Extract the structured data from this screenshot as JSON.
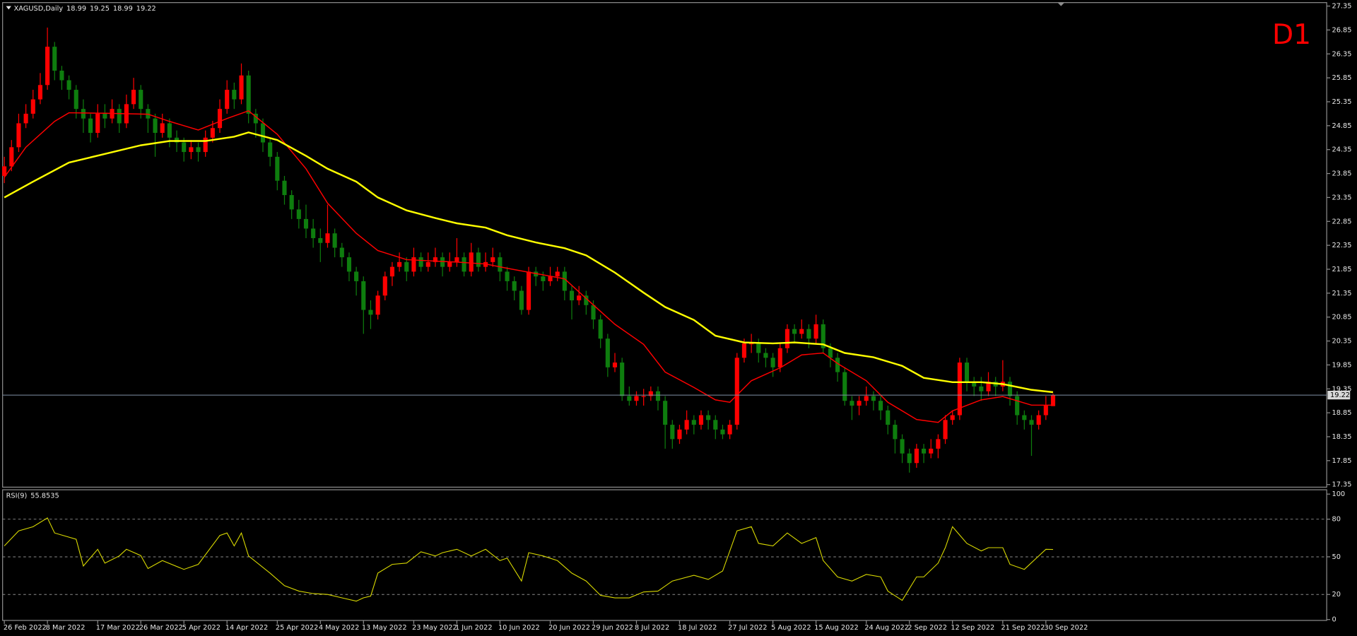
{
  "chart_data": [
    {
      "type": "candlestick",
      "symbol": "XAGUSD,Daily",
      "timeframe": "D1",
      "up_color": "#ff0000",
      "down_color": "#0e7d0e",
      "open": [
        23.8,
        24.0,
        24.4,
        24.9,
        25.1,
        25.4,
        25.7,
        26.5,
        26.0,
        25.8,
        25.6,
        25.2,
        25.0,
        24.7,
        25.1,
        25.0,
        25.2,
        24.9,
        25.3,
        25.6,
        25.2,
        25.0,
        24.7,
        24.9,
        24.6,
        24.5,
        24.3,
        24.4,
        24.3,
        24.6,
        24.8,
        25.2,
        25.6,
        25.4,
        25.9,
        25.1,
        24.9,
        24.5,
        24.2,
        23.7,
        23.4,
        23.1,
        22.9,
        22.7,
        22.5,
        22.4,
        22.6,
        22.3,
        22.1,
        21.8,
        21.6,
        21.0,
        20.9,
        21.3,
        21.7,
        21.9,
        22.0,
        21.8,
        22.1,
        21.9,
        22.0,
        22.1,
        21.9,
        22.0,
        22.1,
        21.8,
        22.2,
        21.9,
        22.0,
        22.1,
        21.8,
        21.6,
        21.4,
        21.0,
        21.8,
        21.7,
        21.6,
        21.7,
        21.8,
        21.4,
        21.2,
        21.3,
        21.1,
        20.8,
        20.4,
        19.8,
        19.9,
        19.2,
        19.1,
        19.2,
        19.2,
        19.3,
        19.1,
        18.6,
        18.3,
        18.5,
        18.7,
        18.6,
        18.8,
        18.7,
        18.5,
        18.4,
        18.6,
        20.0,
        20.3,
        20.3,
        20.1,
        20.0,
        19.8,
        20.2,
        20.6,
        20.5,
        20.6,
        20.4,
        20.7,
        20.2,
        20.0,
        19.7,
        19.1,
        19.0,
        19.1,
        19.2,
        19.1,
        18.9,
        18.6,
        18.3,
        18.0,
        17.8,
        18.1,
        18.0,
        18.1,
        18.3,
        18.7,
        18.8,
        19.9,
        19.5,
        19.4,
        19.3,
        19.5,
        19.4,
        19.5,
        19.2,
        18.8,
        18.7,
        18.6,
        18.8,
        18.99
      ],
      "high": [
        24.2,
        24.55,
        25.1,
        25.3,
        25.6,
        25.95,
        26.9,
        26.6,
        26.1,
        25.9,
        25.7,
        25.4,
        25.1,
        25.3,
        25.3,
        25.4,
        25.3,
        25.5,
        25.85,
        25.7,
        25.3,
        25.1,
        25.1,
        25.0,
        24.75,
        24.6,
        24.55,
        24.5,
        24.75,
        24.95,
        25.4,
        25.8,
        25.75,
        26.15,
        26.0,
        25.2,
        25.0,
        24.6,
        24.3,
        23.8,
        23.5,
        23.3,
        23.2,
        22.9,
        22.7,
        23.2,
        22.7,
        22.4,
        22.2,
        21.9,
        21.7,
        21.2,
        21.4,
        21.8,
        22.0,
        22.2,
        22.1,
        22.3,
        22.2,
        22.2,
        22.3,
        22.2,
        22.2,
        22.5,
        22.2,
        22.4,
        22.3,
        22.2,
        22.3,
        22.2,
        21.9,
        21.7,
        21.5,
        21.9,
        21.9,
        21.8,
        21.9,
        21.9,
        21.9,
        21.5,
        21.5,
        21.4,
        21.2,
        20.9,
        20.5,
        20.1,
        20.0,
        19.4,
        19.3,
        19.35,
        19.4,
        19.4,
        19.2,
        18.7,
        18.6,
        18.9,
        18.8,
        18.9,
        18.9,
        18.8,
        18.6,
        18.7,
        20.1,
        20.4,
        20.5,
        20.4,
        20.2,
        20.1,
        20.3,
        20.7,
        20.7,
        20.8,
        20.7,
        20.9,
        20.8,
        20.3,
        20.1,
        19.8,
        19.2,
        19.2,
        19.4,
        19.3,
        19.2,
        19.0,
        18.7,
        18.4,
        18.1,
        18.2,
        18.2,
        18.3,
        18.4,
        18.8,
        18.9,
        20.0,
        20.0,
        19.6,
        19.6,
        19.7,
        19.6,
        19.95,
        19.6,
        19.3,
        18.9,
        18.8,
        18.9,
        19.2,
        19.25
      ],
      "low": [
        23.65,
        23.9,
        24.3,
        24.8,
        25.0,
        25.3,
        25.6,
        25.8,
        25.6,
        25.4,
        25.0,
        24.7,
        24.5,
        24.6,
        24.8,
        24.9,
        24.7,
        24.8,
        25.2,
        25.0,
        24.7,
        24.2,
        24.6,
        24.4,
        24.3,
        24.1,
        24.15,
        24.1,
        24.2,
        24.5,
        24.7,
        25.1,
        25.2,
        25.3,
        24.9,
        24.6,
        24.3,
        24.0,
        23.5,
        23.2,
        22.9,
        22.7,
        22.5,
        22.3,
        22.0,
        22.3,
        22.1,
        21.9,
        21.6,
        21.3,
        20.5,
        20.6,
        20.8,
        21.2,
        21.5,
        21.8,
        21.6,
        21.7,
        21.8,
        21.8,
        21.9,
        21.7,
        21.8,
        21.9,
        21.7,
        21.7,
        21.8,
        21.8,
        21.9,
        21.6,
        21.4,
        21.2,
        20.9,
        20.9,
        21.5,
        21.4,
        21.5,
        21.6,
        21.2,
        20.8,
        21.1,
        20.9,
        20.6,
        20.2,
        19.6,
        19.7,
        19.1,
        19.0,
        19.0,
        19.0,
        19.1,
        18.9,
        18.1,
        18.1,
        18.2,
        18.4,
        18.4,
        18.5,
        18.5,
        18.3,
        18.3,
        18.3,
        18.5,
        19.9,
        20.1,
        19.9,
        19.8,
        19.6,
        19.7,
        20.1,
        20.3,
        20.4,
        20.2,
        20.3,
        20.1,
        19.8,
        19.5,
        19.0,
        18.7,
        18.8,
        19.0,
        18.9,
        18.7,
        18.4,
        18.0,
        17.8,
        17.6,
        17.7,
        17.8,
        17.9,
        17.9,
        18.2,
        18.6,
        18.7,
        19.3,
        19.2,
        19.1,
        19.2,
        19.2,
        19.3,
        19.0,
        18.6,
        18.5,
        17.95,
        18.5,
        18.7,
        18.99
      ],
      "close": [
        24.0,
        24.4,
        24.9,
        25.1,
        25.4,
        25.7,
        26.5,
        26.0,
        25.8,
        25.6,
        25.2,
        25.0,
        24.7,
        25.1,
        25.0,
        25.2,
        24.9,
        25.3,
        25.6,
        25.2,
        25.0,
        24.7,
        24.9,
        24.6,
        24.5,
        24.3,
        24.4,
        24.3,
        24.6,
        24.8,
        25.2,
        25.6,
        25.4,
        25.9,
        25.1,
        24.9,
        24.5,
        24.2,
        23.7,
        23.4,
        23.1,
        22.9,
        22.7,
        22.5,
        22.4,
        22.6,
        22.3,
        22.1,
        21.8,
        21.6,
        21.0,
        20.9,
        21.3,
        21.7,
        21.9,
        22.0,
        21.8,
        22.1,
        21.9,
        22.0,
        22.1,
        21.9,
        22.0,
        22.1,
        21.8,
        22.2,
        21.9,
        22.0,
        22.1,
        21.8,
        21.6,
        21.4,
        21.0,
        21.8,
        21.7,
        21.6,
        21.7,
        21.8,
        21.4,
        21.2,
        21.3,
        21.1,
        20.8,
        20.4,
        19.8,
        19.9,
        19.2,
        19.1,
        19.2,
        19.2,
        19.3,
        19.1,
        18.6,
        18.3,
        18.5,
        18.7,
        18.6,
        18.8,
        18.7,
        18.5,
        18.4,
        18.6,
        20.0,
        20.3,
        20.3,
        20.1,
        20.0,
        19.8,
        20.2,
        20.6,
        20.5,
        20.6,
        20.4,
        20.7,
        20.2,
        20.0,
        19.7,
        19.1,
        19.0,
        19.1,
        19.2,
        19.1,
        18.9,
        18.6,
        18.3,
        18.0,
        17.8,
        18.1,
        18.0,
        18.1,
        18.3,
        18.7,
        18.8,
        19.9,
        19.5,
        19.4,
        19.3,
        19.5,
        19.4,
        19.5,
        19.2,
        18.8,
        18.7,
        18.6,
        18.8,
        19.0,
        19.22
      ],
      "series": [
        {
          "color": "#ff0000",
          "index": [
            0,
            3,
            7,
            9,
            14,
            20,
            23,
            27,
            31,
            34,
            38,
            42,
            45,
            49,
            52,
            56,
            60,
            63,
            67,
            70,
            74,
            78,
            81,
            85,
            89,
            92,
            96,
            99,
            101,
            104,
            108,
            111,
            114,
            116,
            120,
            123,
            127,
            130,
            132,
            136,
            139,
            143,
            146
          ],
          "values": [
            23.77,
            24.4,
            24.94,
            25.12,
            25.11,
            25.09,
            24.94,
            24.76,
            25.0,
            25.16,
            24.67,
            23.95,
            23.23,
            22.6,
            22.24,
            22.05,
            22.02,
            22.0,
            21.96,
            21.87,
            21.76,
            21.65,
            21.24,
            20.7,
            20.28,
            19.7,
            19.38,
            19.12,
            19.07,
            19.52,
            19.79,
            20.06,
            20.1,
            19.88,
            19.52,
            19.07,
            18.71,
            18.65,
            18.89,
            19.12,
            19.19,
            19.01,
            19.01
          ]
        },
        {
          "color": "#ffff00",
          "index": [
            0,
            4,
            9,
            14,
            19,
            23,
            28,
            32,
            34,
            38,
            42,
            45,
            49,
            52,
            56,
            60,
            63,
            67,
            70,
            74,
            78,
            81,
            85,
            89,
            92,
            96,
            99,
            103,
            107,
            110,
            114,
            117,
            121,
            125,
            128,
            132,
            136,
            139,
            143,
            146
          ],
          "values": [
            23.35,
            23.68,
            24.08,
            24.26,
            24.44,
            24.53,
            24.53,
            24.62,
            24.71,
            24.55,
            24.22,
            23.95,
            23.68,
            23.35,
            23.08,
            22.92,
            22.81,
            22.72,
            22.56,
            22.41,
            22.29,
            22.14,
            21.78,
            21.36,
            21.06,
            20.79,
            20.46,
            20.32,
            20.3,
            20.32,
            20.28,
            20.1,
            20.01,
            19.83,
            19.58,
            19.49,
            19.49,
            19.45,
            19.33,
            19.28
          ]
        }
      ],
      "x_labels": [
        {
          "index": 0,
          "label": "26 Feb 2022"
        },
        {
          "index": 6,
          "label": "8 Mar 2022"
        },
        {
          "index": 13,
          "label": "17 Mar 2022"
        },
        {
          "index": 19,
          "label": "26 Mar 2022"
        },
        {
          "index": 25,
          "label": "5 Apr 2022"
        },
        {
          "index": 31,
          "label": "14 Apr 2022"
        },
        {
          "index": 38,
          "label": "25 Apr 2022"
        },
        {
          "index": 44,
          "label": "4 May 2022"
        },
        {
          "index": 50,
          "label": "13 May 2022"
        },
        {
          "index": 57,
          "label": "23 May 2022"
        },
        {
          "index": 63,
          "label": "1 Jun 2022"
        },
        {
          "index": 69,
          "label": "10 Jun 2022"
        },
        {
          "index": 76,
          "label": "20 Jun 2022"
        },
        {
          "index": 82,
          "label": "29 Jun 2022"
        },
        {
          "index": 88,
          "label": "8 Jul 2022"
        },
        {
          "index": 94,
          "label": "18 Jul 2022"
        },
        {
          "index": 101,
          "label": "27 Jul 2022"
        },
        {
          "index": 107,
          "label": "5 Aug 2022"
        },
        {
          "index": 113,
          "label": "15 Aug 2022"
        },
        {
          "index": 120,
          "label": "24 Aug 2022"
        },
        {
          "index": 126,
          "label": "2 Sep 2022"
        },
        {
          "index": 132,
          "label": "12 Sep 2022"
        },
        {
          "index": 139,
          "label": "21 Sep 2022"
        },
        {
          "index": 145,
          "label": "30 Sep 2022"
        }
      ],
      "ylim": [
        17.35,
        27.35
      ],
      "yticks": [
        27.35,
        26.85,
        26.35,
        25.85,
        25.35,
        24.85,
        24.35,
        23.85,
        23.35,
        22.85,
        22.35,
        21.85,
        21.35,
        20.85,
        20.35,
        19.85,
        19.35,
        18.85,
        18.35,
        17.85,
        17.35
      ]
    },
    {
      "type": "line",
      "title": "RSI(9)",
      "color": "#d8d800",
      "index": [
        0,
        2,
        4,
        6,
        7,
        10,
        11,
        13,
        14,
        16,
        17,
        19,
        20,
        22,
        25,
        27,
        30,
        31,
        32,
        33,
        34,
        37,
        39,
        41,
        43,
        45,
        47,
        49,
        50,
        51,
        52,
        54,
        56,
        58,
        60,
        61,
        63,
        65,
        67,
        69,
        70,
        72,
        73,
        75,
        77,
        79,
        81,
        83,
        85,
        87,
        89,
        91,
        93,
        96,
        98,
        100,
        102,
        104,
        105,
        107,
        109,
        111,
        113,
        114,
        116,
        118,
        120,
        122,
        123,
        125,
        127,
        128,
        130,
        131,
        132,
        134,
        136,
        137,
        139,
        140,
        142,
        144,
        145,
        146
      ],
      "values": [
        58.7,
        70.7,
        74,
        81,
        69,
        64,
        42.7,
        56,
        45,
        50.7,
        56,
        51,
        40.7,
        47,
        40,
        44,
        67,
        69,
        58.7,
        69,
        50.7,
        37,
        27,
        22.7,
        20.7,
        20,
        17.3,
        14.7,
        17.3,
        18.7,
        37,
        44,
        45,
        54,
        50.7,
        53.3,
        56,
        50.7,
        56,
        47,
        49,
        30.7,
        53.3,
        50.7,
        47,
        37,
        30.7,
        19.3,
        17.3,
        17.3,
        22,
        22.7,
        30.7,
        35.3,
        32,
        38.7,
        70.7,
        74,
        60.7,
        58.7,
        69,
        60.7,
        65.3,
        47,
        34,
        30.7,
        36,
        34,
        22.7,
        15.3,
        34,
        34,
        45,
        57.3,
        74,
        60.7,
        54.7,
        57.3,
        57.3,
        44,
        40,
        50.7,
        56,
        55.8535
      ],
      "ylim": [
        0,
        100
      ],
      "yticks": [
        0,
        20,
        50,
        80,
        100
      ]
    }
  ]
}
